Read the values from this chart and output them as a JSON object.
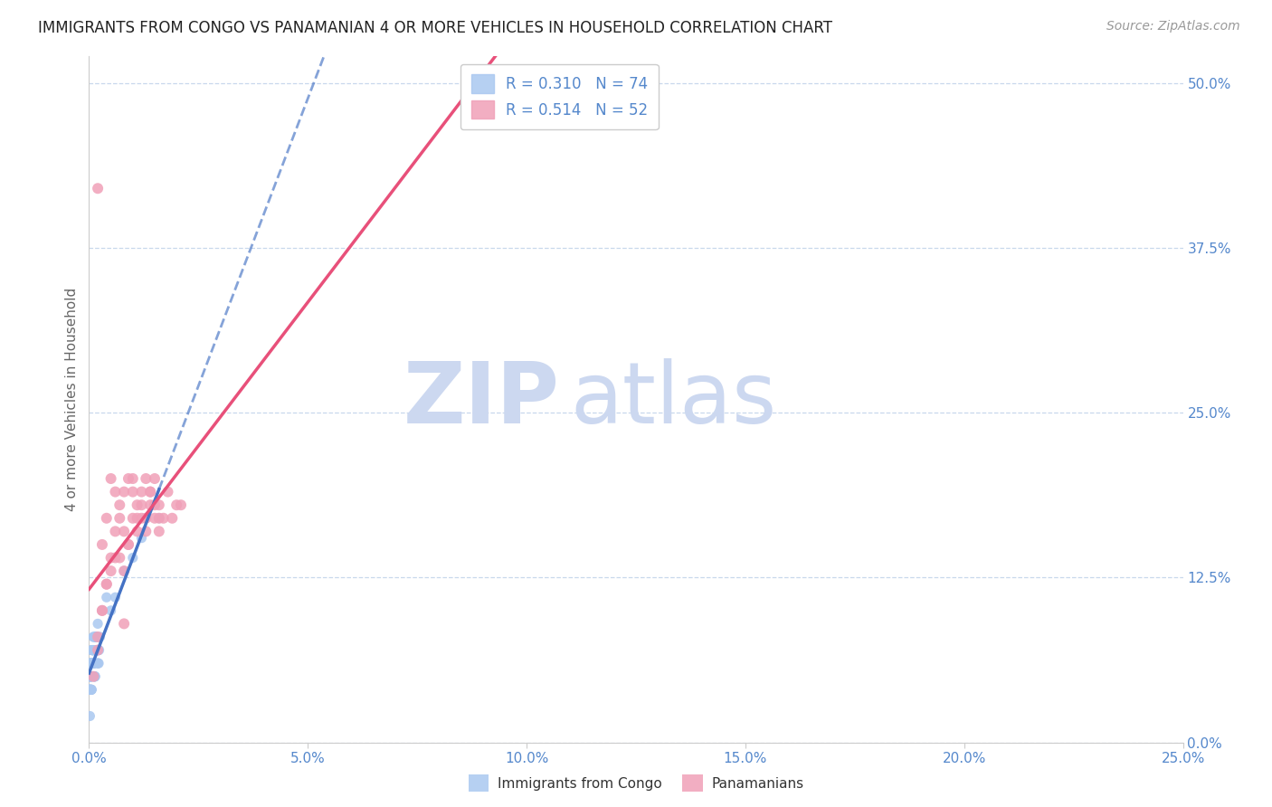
{
  "title": "IMMIGRANTS FROM CONGO VS PANAMANIAN 4 OR MORE VEHICLES IN HOUSEHOLD CORRELATION CHART",
  "source": "Source: ZipAtlas.com",
  "xlabel_ticks": [
    "0.0%",
    "5.0%",
    "10.0%",
    "15.0%",
    "20.0%",
    "25.0%"
  ],
  "ylabel_ticks": [
    "0.0%",
    "12.5%",
    "25.0%",
    "37.5%",
    "50.0%"
  ],
  "ylabel_label": "4 or more Vehicles in Household",
  "xlim": [
    0.0,
    0.25
  ],
  "ylim": [
    0.0,
    0.52
  ],
  "legend_entries": [
    {
      "label": "Immigrants from Congo",
      "R": 0.31,
      "N": 74,
      "color": "#aac8f0",
      "line_color": "#4472c4",
      "line_style": "solid"
    },
    {
      "label": "Panamanians",
      "R": 0.514,
      "N": 52,
      "color": "#f0a0b8",
      "line_color": "#e8507a",
      "line_style": "solid"
    }
  ],
  "congo_x": [
    0.0002,
    0.0003,
    0.0005,
    0.0008,
    0.001,
    0.0012,
    0.0015,
    0.002,
    0.0022,
    0.0025,
    0.0003,
    0.0006,
    0.0009,
    0.001,
    0.0013,
    0.0016,
    0.002,
    0.0023,
    0.0001,
    0.0004,
    0.0007,
    0.001,
    0.0014,
    0.0018,
    0.002,
    0.0001,
    0.0003,
    0.0006,
    0.0009,
    0.0012,
    0.0015,
    0.002,
    0.0002,
    0.0005,
    0.0008,
    0.001,
    0.0013,
    0.0017,
    0.002,
    0.0001,
    0.0004,
    0.0007,
    0.001,
    0.0015,
    0.002,
    0.0001,
    0.0003,
    0.0006,
    0.0009,
    0.0012,
    0.0002,
    0.0005,
    0.0008,
    0.001,
    0.0014,
    0.002,
    0.0001,
    0.0004,
    0.0007,
    0.001,
    0.0003,
    0.0006,
    0.001,
    0.002,
    0.003,
    0.004,
    0.005,
    0.006,
    0.008,
    0.01,
    0.012,
    0.016,
    0.0002,
    0.0005
  ],
  "congo_y": [
    0.04,
    0.06,
    0.05,
    0.07,
    0.06,
    0.05,
    0.08,
    0.07,
    0.06,
    0.08,
    0.05,
    0.04,
    0.06,
    0.07,
    0.05,
    0.08,
    0.06,
    0.07,
    0.04,
    0.05,
    0.06,
    0.07,
    0.05,
    0.08,
    0.07,
    0.04,
    0.06,
    0.05,
    0.07,
    0.06,
    0.08,
    0.07,
    0.05,
    0.04,
    0.06,
    0.07,
    0.05,
    0.08,
    0.06,
    0.04,
    0.05,
    0.07,
    0.06,
    0.08,
    0.07,
    0.04,
    0.06,
    0.05,
    0.07,
    0.06,
    0.05,
    0.04,
    0.07,
    0.06,
    0.08,
    0.07,
    0.05,
    0.06,
    0.07,
    0.08,
    0.06,
    0.07,
    0.08,
    0.09,
    0.1,
    0.11,
    0.1,
    0.11,
    0.13,
    0.14,
    0.155,
    0.17,
    0.02,
    0.04
  ],
  "panama_x": [
    0.001,
    0.002,
    0.002,
    0.003,
    0.003,
    0.004,
    0.004,
    0.005,
    0.005,
    0.006,
    0.006,
    0.007,
    0.007,
    0.008,
    0.008,
    0.009,
    0.009,
    0.01,
    0.01,
    0.011,
    0.011,
    0.012,
    0.012,
    0.013,
    0.013,
    0.014,
    0.014,
    0.015,
    0.015,
    0.016,
    0.002,
    0.004,
    0.006,
    0.008,
    0.01,
    0.012,
    0.014,
    0.016,
    0.018,
    0.02,
    0.003,
    0.005,
    0.007,
    0.009,
    0.011,
    0.013,
    0.015,
    0.017,
    0.019,
    0.021,
    0.008,
    0.016
  ],
  "panama_y": [
    0.05,
    0.07,
    0.42,
    0.1,
    0.15,
    0.12,
    0.17,
    0.14,
    0.2,
    0.16,
    0.19,
    0.14,
    0.18,
    0.13,
    0.19,
    0.15,
    0.2,
    0.17,
    0.2,
    0.16,
    0.18,
    0.17,
    0.19,
    0.17,
    0.2,
    0.18,
    0.19,
    0.2,
    0.17,
    0.18,
    0.08,
    0.12,
    0.14,
    0.16,
    0.19,
    0.18,
    0.19,
    0.17,
    0.19,
    0.18,
    0.1,
    0.13,
    0.17,
    0.15,
    0.17,
    0.16,
    0.18,
    0.17,
    0.17,
    0.18,
    0.09,
    0.16
  ],
  "congo_color": "#aac8f0",
  "panama_color": "#f0a0b8",
  "congo_line_color": "#4472c4",
  "panama_line_color": "#e8507a",
  "background_color": "#ffffff",
  "grid_color": "#c8d8ec",
  "watermark_zip": "ZIP",
  "watermark_atlas": "atlas",
  "watermark_color": "#ccd8f0",
  "title_fontsize": 12,
  "source_fontsize": 10,
  "tick_label_color": "#5588cc",
  "axis_label_color": "#666666"
}
